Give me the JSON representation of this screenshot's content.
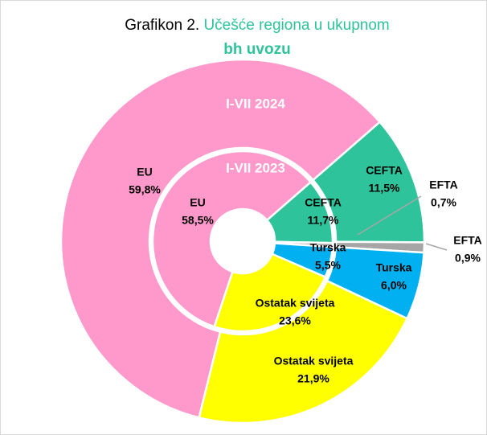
{
  "chart_data": {
    "type": "donut",
    "title": [
      "Grafikon 2.",
      "Učešće regiona u ukupnom",
      "bh uvozu"
    ],
    "categories": [
      "CEFTA",
      "EFTA",
      "Turska",
      "Ostatak svijeta",
      "EU"
    ],
    "colors": [
      "#2ec39b",
      "#a6a6a6",
      "#00b0f0",
      "#ffff00",
      "#ff99cc"
    ],
    "series": [
      {
        "name": "I-VII 2023",
        "values": [
          11.7,
          0.7,
          5.5,
          23.6,
          58.5
        ],
        "value_labels": [
          "11,7%",
          "0,7%",
          "5,5%",
          "23,6%",
          "58,5%"
        ]
      },
      {
        "name": "I-VII 2024",
        "values": [
          11.5,
          0.9,
          6.0,
          21.9,
          59.8
        ],
        "value_labels": [
          "11,5%",
          "0,9%",
          "6,0%",
          "21,9%",
          "59,8%"
        ]
      }
    ]
  }
}
